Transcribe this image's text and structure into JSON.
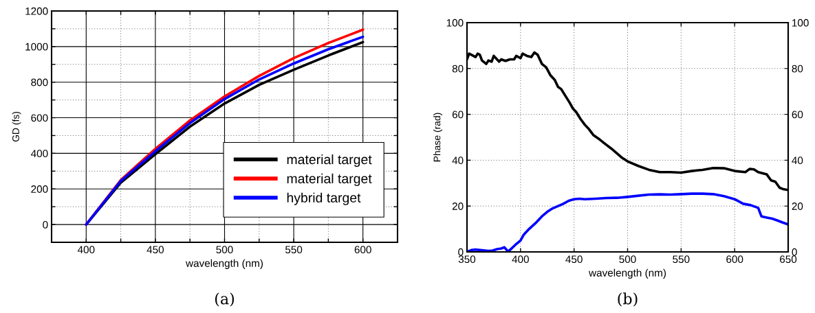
{
  "chart_data": [
    {
      "type": "line",
      "ylabel": "GD (fs)",
      "xlabel": "wavelength (nm)",
      "annotations": [
        "(a)"
      ],
      "x": [
        400,
        425,
        450,
        475,
        500,
        525,
        550,
        575,
        600
      ],
      "xlim": [
        375,
        625
      ],
      "ylim": [
        -100,
        1200
      ],
      "xticks": [
        400,
        {
          "value": 425,
          "label": null
        },
        450,
        {
          "value": 475,
          "label": null
        },
        500,
        {
          "value": 525,
          "label": null
        },
        550,
        {
          "value": 575,
          "label": null
        },
        600
      ],
      "yticks": [
        0,
        {
          "value": 100,
          "label": null
        },
        200,
        {
          "value": 300,
          "label": null
        },
        400,
        {
          "value": 500,
          "label": null
        },
        600,
        {
          "value": 700,
          "label": null
        },
        800,
        {
          "value": 900,
          "label": null
        },
        1000,
        {
          "value": 1100,
          "label": null
        },
        1200
      ],
      "grid": true,
      "legend": "bottom right",
      "series": [
        {
          "name": "material target",
          "color": "#000000",
          "values": [
            0,
            235,
            395,
            550,
            680,
            785,
            870,
            950,
            1025
          ]
        },
        {
          "name": "material target",
          "color": "#ff0000",
          "values": [
            0,
            250,
            425,
            585,
            720,
            835,
            935,
            1020,
            1095
          ]
        },
        {
          "name": "hybrid target",
          "color": "#0000ff",
          "values": [
            0,
            245,
            412,
            570,
            705,
            815,
            905,
            985,
            1055
          ]
        }
      ]
    },
    {
      "type": "line",
      "ylabel": "Phase (rad)",
      "xlabel": "wavelength (nm)",
      "annotations": [
        "(b)"
      ],
      "xlim": [
        350,
        650
      ],
      "ylim": [
        0,
        100
      ],
      "y2lim": [
        0,
        100
      ],
      "xticks": [
        350,
        400,
        450,
        500,
        550,
        600,
        650
      ],
      "yticks": [
        0,
        20,
        40,
        60,
        80,
        100
      ],
      "y2ticks": [
        0,
        20,
        40,
        60,
        80,
        100
      ],
      "grid": true,
      "series": [
        {
          "color": "#000000",
          "x": [
            350,
            352,
            356,
            358,
            360,
            362,
            364,
            368,
            370,
            373,
            375,
            380,
            382,
            386,
            390,
            394,
            396,
            400,
            402,
            406,
            410,
            413,
            416,
            420,
            424,
            428,
            432,
            435,
            438,
            442,
            446,
            449,
            452,
            456,
            460,
            464,
            468,
            474,
            478,
            485,
            490,
            495,
            500,
            510,
            520,
            530,
            540,
            550,
            560,
            570,
            580,
            590,
            600,
            610,
            614,
            618,
            622,
            630,
            634,
            638,
            642,
            646,
            650
          ],
          "values": [
            84,
            86.5,
            85.5,
            85,
            86.5,
            86,
            83.5,
            82,
            83.5,
            83,
            85.5,
            83,
            84,
            83.3,
            84,
            84,
            85.5,
            84.5,
            86.5,
            85.5,
            85,
            87,
            86,
            82,
            80.5,
            77,
            75,
            72,
            71,
            68,
            65,
            62.5,
            61,
            58,
            55.5,
            53.5,
            51,
            49,
            47.5,
            45,
            43,
            41,
            39.5,
            37.5,
            35.8,
            34.8,
            34.8,
            34.6,
            35.3,
            35.8,
            36.6,
            36.5,
            35.3,
            34.8,
            36.2,
            36,
            34.8,
            33.8,
            31.2,
            30.6,
            28,
            27.3,
            27
          ]
        },
        {
          "color": "#0000ff",
          "x": [
            350,
            354,
            358,
            364,
            370,
            374,
            378,
            382,
            385,
            388,
            390,
            395,
            400,
            403,
            408,
            415,
            420,
            425,
            430,
            440,
            445,
            450,
            455,
            460,
            470,
            480,
            490,
            500,
            510,
            520,
            530,
            540,
            550,
            560,
            570,
            580,
            590,
            600,
            608,
            615,
            622,
            625,
            630,
            635,
            640,
            645,
            650
          ],
          "values": [
            0,
            0.8,
            1,
            0.7,
            0.4,
            0.6,
            1.2,
            1.5,
            2,
            0.3,
            0.8,
            3,
            5,
            7.5,
            10,
            13,
            15.5,
            17.5,
            19,
            21,
            22.3,
            23,
            23.2,
            23,
            23.2,
            23.5,
            23.6,
            24,
            24.5,
            25,
            25.1,
            25,
            25.2,
            25.4,
            25.4,
            25.2,
            24.3,
            23,
            21,
            20.4,
            19.2,
            15.5,
            15,
            14.5,
            13.7,
            12.8,
            12
          ]
        }
      ]
    }
  ]
}
